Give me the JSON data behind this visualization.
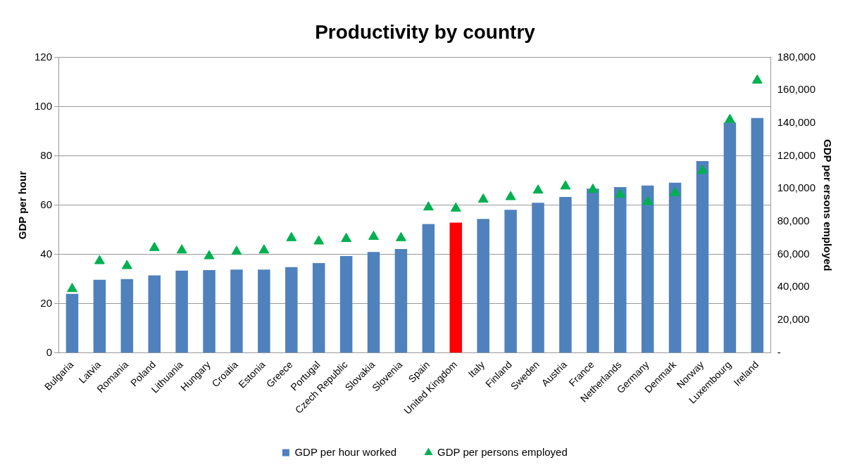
{
  "chart_data": {
    "type": "bar",
    "title": "Productivity by country",
    "ylabel": "GDP per hour",
    "y2label": "GDP per ersons employed",
    "categories": [
      "Bulgaria",
      "Latvia",
      "Romania",
      "Poland",
      "Lithuania",
      "Hungary",
      "Croatia",
      "Estonia",
      "Greece",
      "Portugal",
      "Czech Republic",
      "Slovakia",
      "Slovenia",
      "Spain",
      "United Kingdom",
      "Italy",
      "Finland",
      "Sweden",
      "Austria",
      "France",
      "Netherlands",
      "Germany",
      "Denmark",
      "Norway",
      "Luxembourg",
      "Ireland"
    ],
    "series": [
      {
        "name": "GDP per hour worked",
        "color": "#4f81bd",
        "colors": [
          "#4f81bd",
          "#4f81bd",
          "#4f81bd",
          "#4f81bd",
          "#4f81bd",
          "#4f81bd",
          "#4f81bd",
          "#4f81bd",
          "#4f81bd",
          "#4f81bd",
          "#4f81bd",
          "#4f81bd",
          "#4f81bd",
          "#4f81bd",
          "#ff0000",
          "#4f81bd",
          "#4f81bd",
          "#4f81bd",
          "#4f81bd",
          "#4f81bd",
          "#4f81bd",
          "#4f81bd",
          "#4f81bd",
          "#4f81bd",
          "#4f81bd",
          "#4f81bd"
        ],
        "values": [
          24,
          29.7,
          30,
          31.5,
          33.4,
          33.6,
          33.8,
          33.8,
          34.8,
          36.5,
          39.3,
          41,
          42.2,
          52.3,
          52.9,
          54.4,
          58.1,
          61,
          63.3,
          66.7,
          67.3,
          68,
          69.1,
          77.9,
          93.5,
          95.4
        ]
      },
      {
        "name": "GDP per persons employed",
        "type": "scatter",
        "axis": "y2",
        "marker": "triangle",
        "color": "#00b050",
        "values": [
          39000,
          56000,
          53000,
          64000,
          62500,
          59000,
          61700,
          62500,
          70000,
          68000,
          69500,
          70800,
          70000,
          88700,
          88000,
          93500,
          95000,
          99000,
          101500,
          99500,
          96500,
          92000,
          97500,
          111000,
          142000,
          166000
        ]
      }
    ],
    "ylim": [
      0,
      120
    ],
    "yticks": [
      0,
      20,
      40,
      60,
      80,
      100,
      120
    ],
    "y2lim": [
      0,
      180000
    ],
    "y2ticks": [
      {
        "value": 0,
        "label": "-"
      },
      {
        "value": 20000,
        "label": "20,000"
      },
      {
        "value": 40000,
        "label": "40,000"
      },
      {
        "value": 60000,
        "label": "60,000"
      },
      {
        "value": 80000,
        "label": "80,000"
      },
      {
        "value": 100000,
        "label": "100,000"
      },
      {
        "value": 120000,
        "label": "120,000"
      },
      {
        "value": 140000,
        "label": "140,000"
      },
      {
        "value": 160000,
        "label": "160,000"
      },
      {
        "value": 180000,
        "label": "180,000"
      }
    ],
    "grid": "y",
    "legend": "bottom"
  }
}
